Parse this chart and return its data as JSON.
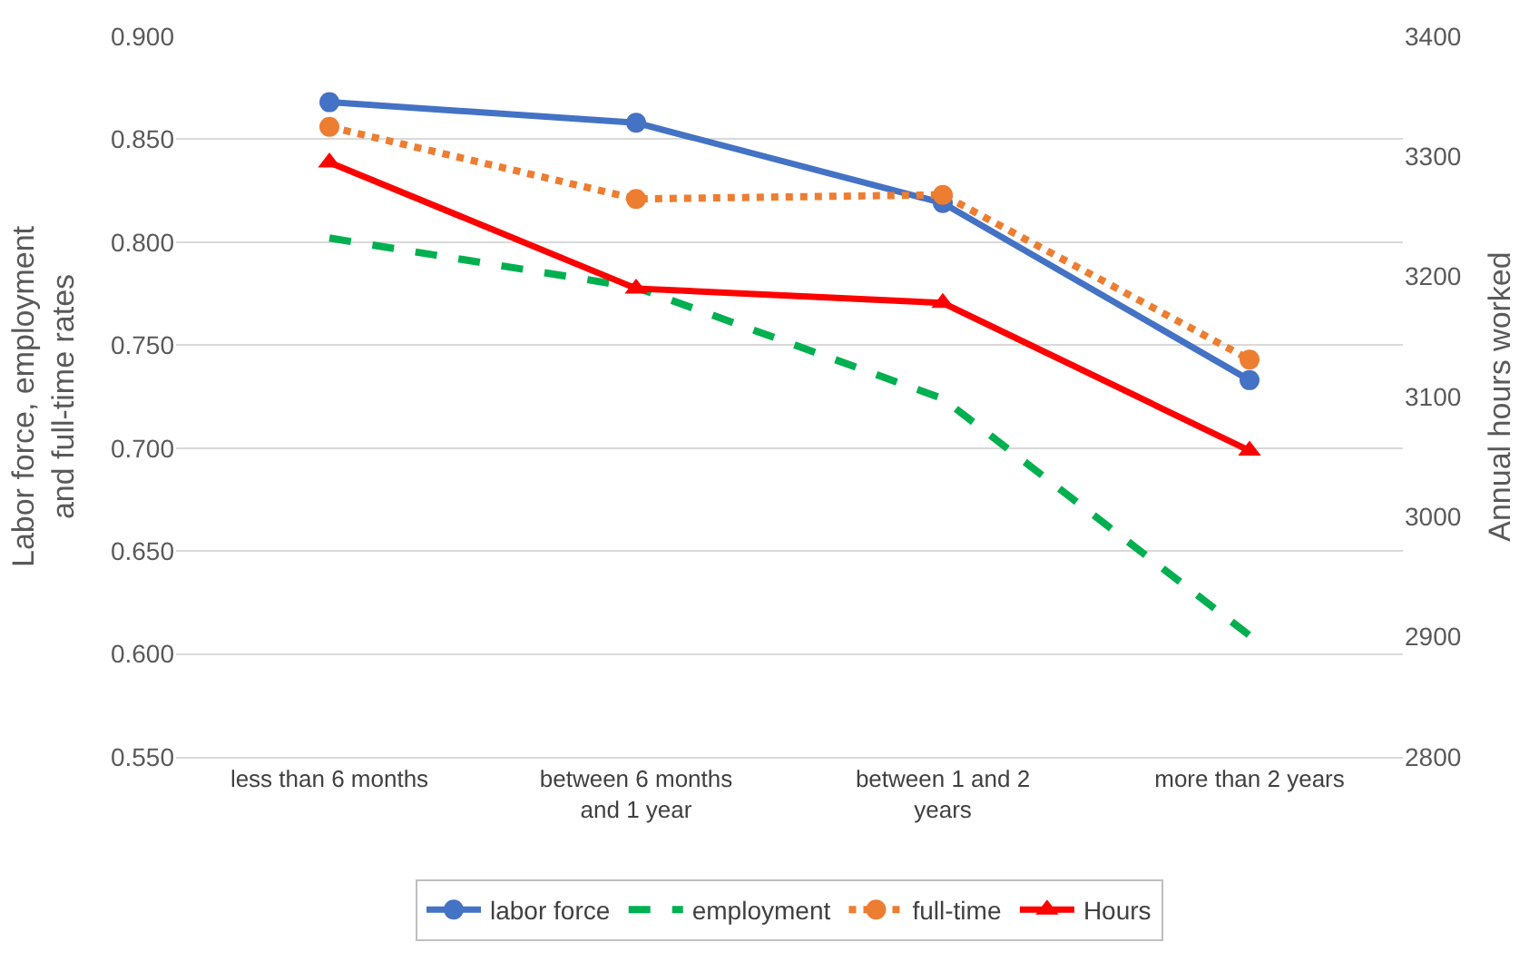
{
  "chart_data": {
    "type": "line",
    "ylabel": "Labor force, employment and full-time rates",
    "y2label": "Annual hours worked",
    "categories": [
      "less than 6 months",
      "between 6 months and 1 year",
      "between 1 and 2 years",
      "more than 2 years"
    ],
    "series": [
      {
        "name": "labor force",
        "color": "#4472c4",
        "values": [
          0.868,
          0.858,
          0.819,
          0.733
        ],
        "marker": "circle",
        "line_style": "solid"
      },
      {
        "name": "employment",
        "color": "#00b050",
        "values": [
          0.802,
          0.778,
          0.724,
          0.609
        ],
        "marker": "none",
        "line_style": "dashed"
      },
      {
        "name": "full-time",
        "color": "#ed7d31",
        "values": [
          0.856,
          0.821,
          0.823,
          0.743
        ],
        "marker": "circle",
        "line_style": "dotted"
      },
      {
        "name": "Hours",
        "color": "#ff0000",
        "values": [
          3295,
          3190,
          3178,
          3055
        ],
        "marker": "triangle",
        "line_style": "solid",
        "axis": "y2"
      }
    ],
    "ylim": [
      0.55,
      0.9
    ],
    "yticks": [
      {
        "value": 0.55,
        "label": "0.550"
      },
      {
        "value": 0.6,
        "label": "0.600"
      },
      {
        "value": 0.65,
        "label": "0.650"
      },
      {
        "value": 0.7,
        "label": "0.700"
      },
      {
        "value": 0.75,
        "label": "0.750"
      },
      {
        "value": 0.8,
        "label": "0.800"
      },
      {
        "value": 0.85,
        "label": "0.850"
      },
      {
        "value": 0.9,
        "label": "0.900"
      }
    ],
    "y2lim": [
      2800,
      3400
    ],
    "y2ticks": [
      2800,
      2900,
      3000,
      3100,
      3200,
      3300,
      3400
    ],
    "grid": "y",
    "legend": "bottom"
  }
}
